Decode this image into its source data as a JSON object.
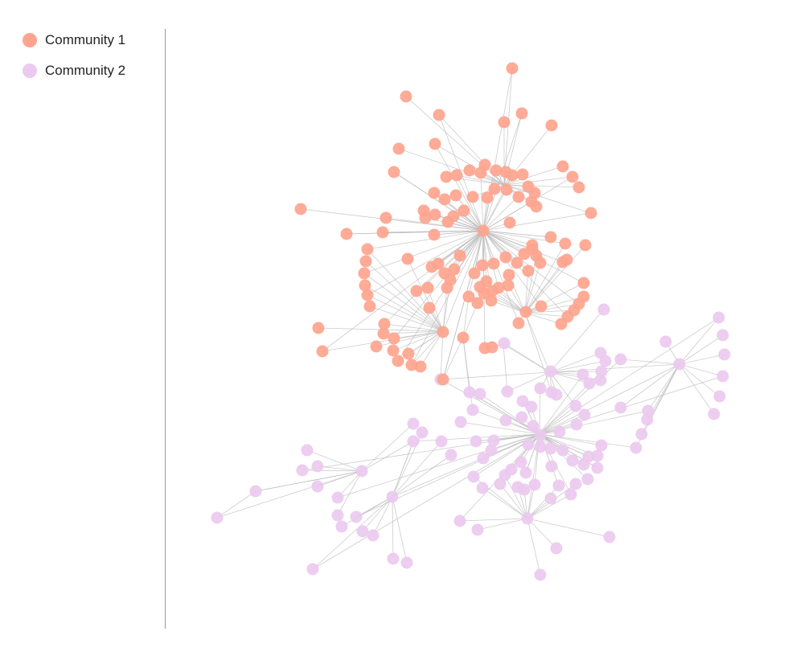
{
  "legend": {
    "items": [
      {
        "label": "Community 1",
        "color": "#fea48e"
      },
      {
        "label": "Community 2",
        "color": "#ecc9ef"
      }
    ]
  },
  "graph": {
    "edge_color": "#bbbbbb",
    "communities": 2
  }
}
